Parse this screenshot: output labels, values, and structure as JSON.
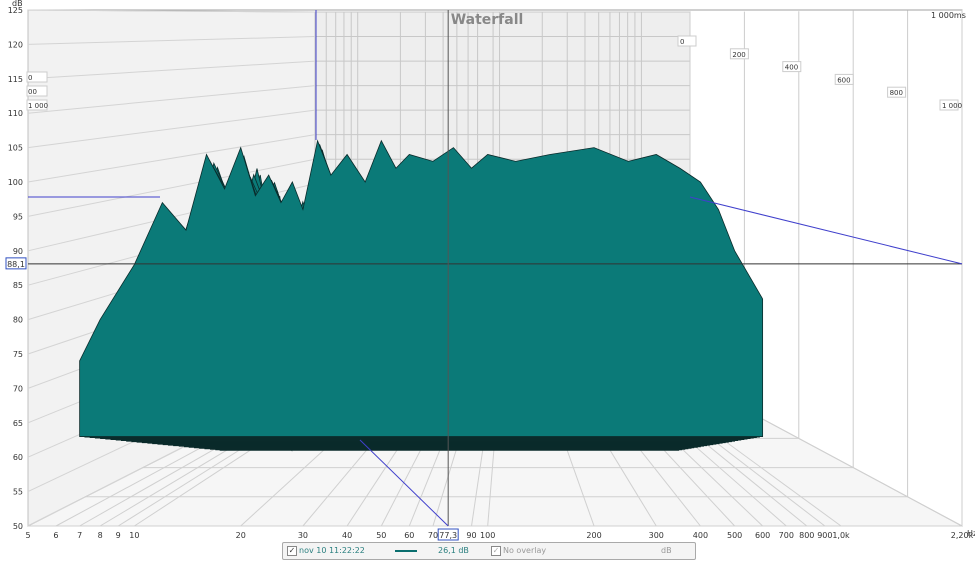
{
  "chart_data": {
    "type": "area",
    "title": "Waterfall",
    "y_unit_label": "dB",
    "x_unit_label": "Hz",
    "z_unit_label": "ms",
    "x_scale": "log",
    "xlim": [
      5,
      2200
    ],
    "ylim": [
      50,
      125
    ],
    "zlim": [
      0,
      1000
    ],
    "y_ticks": [
      50,
      55,
      60,
      65,
      70,
      75,
      80,
      85,
      90,
      95,
      100,
      105,
      110,
      115,
      120,
      125
    ],
    "x_ticks": [
      {
        "v": 5,
        "label": "5"
      },
      {
        "v": 6,
        "label": "6"
      },
      {
        "v": 7,
        "label": "7"
      },
      {
        "v": 8,
        "label": "8"
      },
      {
        "v": 9,
        "label": "9"
      },
      {
        "v": 10,
        "label": "10"
      },
      {
        "v": 20,
        "label": "20"
      },
      {
        "v": 30,
        "label": "30"
      },
      {
        "v": 40,
        "label": "40"
      },
      {
        "v": 50,
        "label": "50"
      },
      {
        "v": 60,
        "label": "60"
      },
      {
        "v": 70,
        "label": "70"
      },
      {
        "v": 90,
        "label": "90"
      },
      {
        "v": 100,
        "label": "100"
      },
      {
        "v": 200,
        "label": "200"
      },
      {
        "v": 300,
        "label": "300"
      },
      {
        "v": 400,
        "label": "400"
      },
      {
        "v": 500,
        "label": "500"
      },
      {
        "v": 600,
        "label": "600"
      },
      {
        "v": 700,
        "label": "700"
      },
      {
        "v": 800,
        "label": "800"
      },
      {
        "v": 900,
        "label": "900"
      },
      {
        "v": 1000,
        "label": "1,0k"
      },
      {
        "v": 2200,
        "label": "2,20k"
      }
    ],
    "z_ticks": [
      {
        "v": 0,
        "label": "0"
      },
      {
        "v": 200,
        "label": "200"
      },
      {
        "v": 400,
        "label": "400"
      },
      {
        "v": 600,
        "label": "600"
      },
      {
        "v": 800,
        "label": "800"
      },
      {
        "v": 1000,
        "label": "1 000"
      }
    ],
    "z_end_label": "1 000ms",
    "left_z_labels": [
      "0",
      "00",
      "1 000"
    ],
    "cursor": {
      "freq": 77.3,
      "freq_label": "77,3",
      "level": 88.1,
      "level_label": "88,1"
    },
    "series": [
      {
        "name": "nov 10 11:22:22",
        "color": "#0a6e6e",
        "x": [
          7,
          8,
          10,
          12,
          14,
          16,
          18,
          20,
          22,
          24,
          26,
          28,
          30,
          33,
          36,
          40,
          45,
          50,
          55,
          60,
          70,
          80,
          90,
          100,
          120,
          150,
          200,
          250,
          300,
          350,
          400,
          450,
          500,
          600
        ],
        "y": [
          74,
          80,
          88,
          97,
          93,
          104,
          99,
          105,
          98,
          101,
          97,
          100,
          96,
          106,
          101,
          104,
          100,
          106,
          102,
          104,
          103,
          105,
          102,
          104,
          103,
          104,
          105,
          103,
          104,
          102,
          100,
          96,
          90,
          83
        ]
      }
    ]
  },
  "legend": {
    "series_label": "nov 10 11:22:22",
    "value_label": "26,1 dB",
    "overlay_label": "No overlay",
    "unit_label": "dB"
  }
}
